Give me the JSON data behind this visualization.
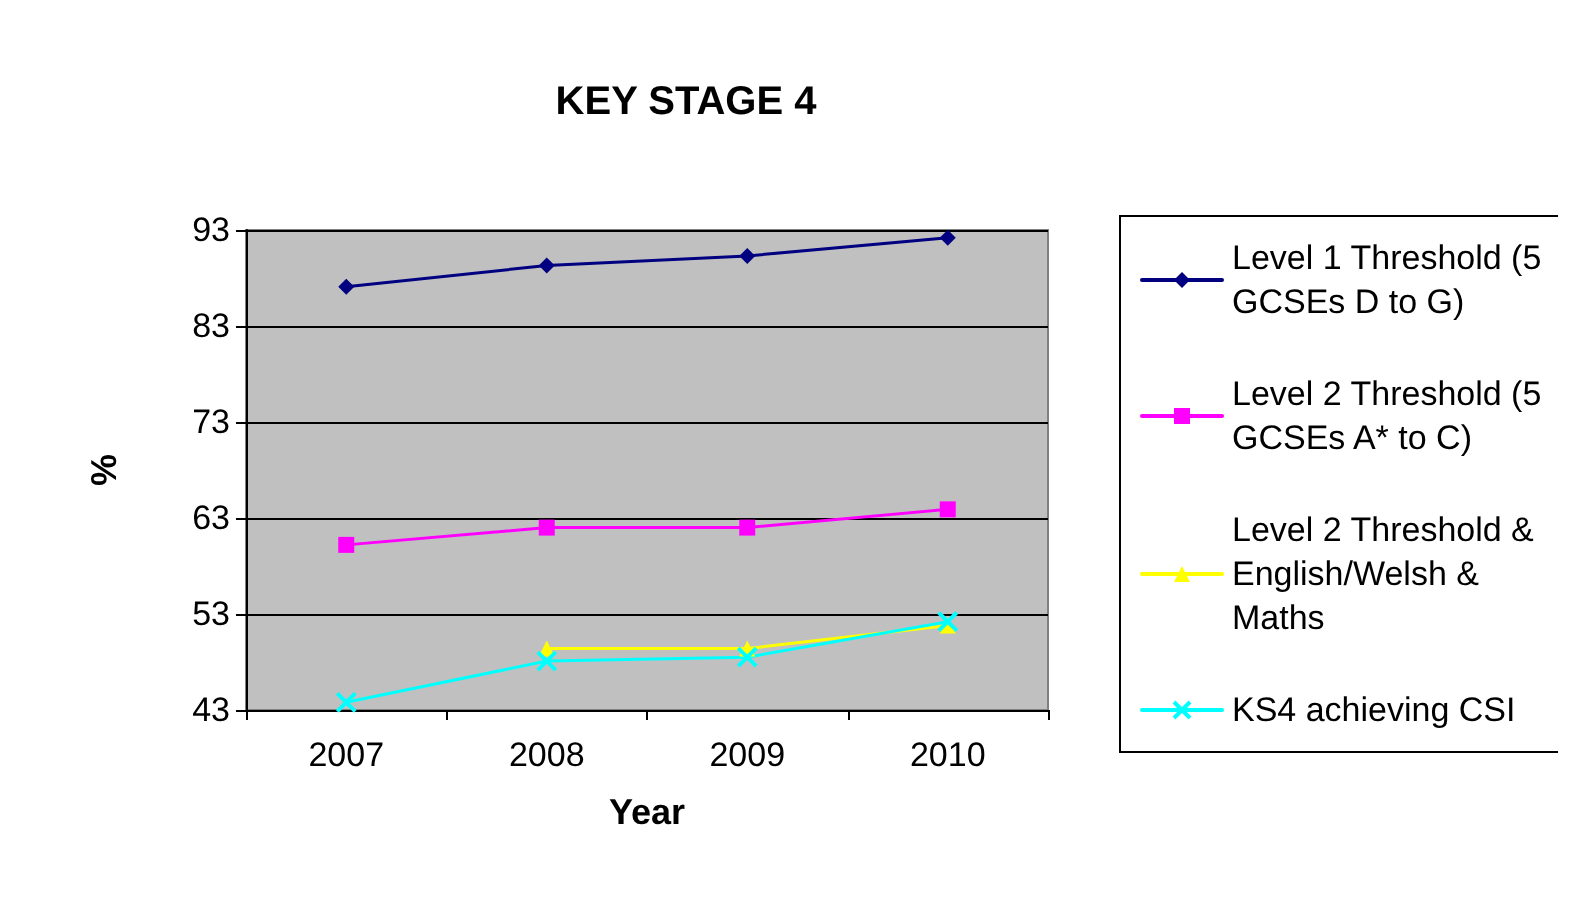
{
  "chart_data": {
    "type": "line",
    "title": "KEY STAGE 4",
    "xlabel": "Year",
    "ylabel": "%",
    "categories": [
      "2007",
      "2008",
      "2009",
      "2010"
    ],
    "ylim": [
      43,
      93
    ],
    "yticks": [
      43,
      53,
      63,
      73,
      83,
      93
    ],
    "grid": "y",
    "legend": "right",
    "line_style": "solid",
    "series": [
      {
        "name": "Level 1 Threshold (5 GCSEs D to G)",
        "color": "#000080",
        "marker": "diamond",
        "values": [
          87.1,
          89.3,
          90.3,
          92.2
        ]
      },
      {
        "name": "Level 2 Threshold (5 GCSEs A* to C)",
        "color": "#ff00ff",
        "marker": "square",
        "values": [
          60.2,
          62,
          62,
          63.9
        ]
      },
      {
        "name": "Level 2 Threshold & English/Welsh & Maths",
        "color": "#ffff00",
        "marker": "triangle",
        "values": [
          null,
          49.4,
          49.4,
          51.8
        ]
      },
      {
        "name": "KS4 achieving CSI",
        "color": "#00ffff",
        "marker": "cross",
        "values": [
          43.8,
          48.1,
          48.5,
          52.2
        ]
      }
    ]
  }
}
